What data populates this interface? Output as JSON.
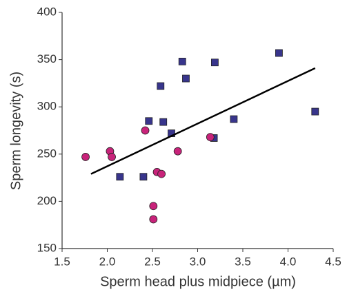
{
  "chart_data": {
    "type": "scatter",
    "x_label": "Sperm head plus midpiece (µm)",
    "y_label": "Sperm longevity (s)",
    "xlim": [
      1.5,
      4.5
    ],
    "xticks": [
      1.5,
      {
        "value": 2,
        "label": "2.0"
      },
      2.5,
      {
        "value": 3,
        "label": "3.0"
      },
      3.5,
      {
        "value": 4,
        "label": "4.0"
      },
      4.5
    ],
    "ylim": [
      150,
      400
    ],
    "yticks": [
      150,
      200,
      250,
      300,
      350,
      400
    ],
    "series": [
      {
        "marker": "square",
        "color": "#38358c",
        "x": [
          2.14,
          2.4,
          2.46,
          2.59,
          2.62,
          2.71,
          2.83,
          2.87,
          3.18,
          3.19,
          3.4,
          3.9,
          4.3
        ],
        "values": [
          226,
          226,
          285,
          322,
          284,
          272,
          348,
          330,
          267,
          347,
          287,
          357,
          295
        ]
      },
      {
        "marker": "circle",
        "color": "#c8237a",
        "x": [
          1.76,
          2.03,
          2.05,
          2.42,
          2.51,
          2.51,
          2.55,
          2.6,
          2.78,
          3.14
        ],
        "values": [
          247,
          253,
          247,
          275,
          195,
          181,
          231,
          229,
          253,
          268
        ]
      }
    ],
    "trend_line": {
      "color": "#000000",
      "x": [
        1.82,
        4.3
      ],
      "values": [
        229,
        341
      ]
    }
  }
}
